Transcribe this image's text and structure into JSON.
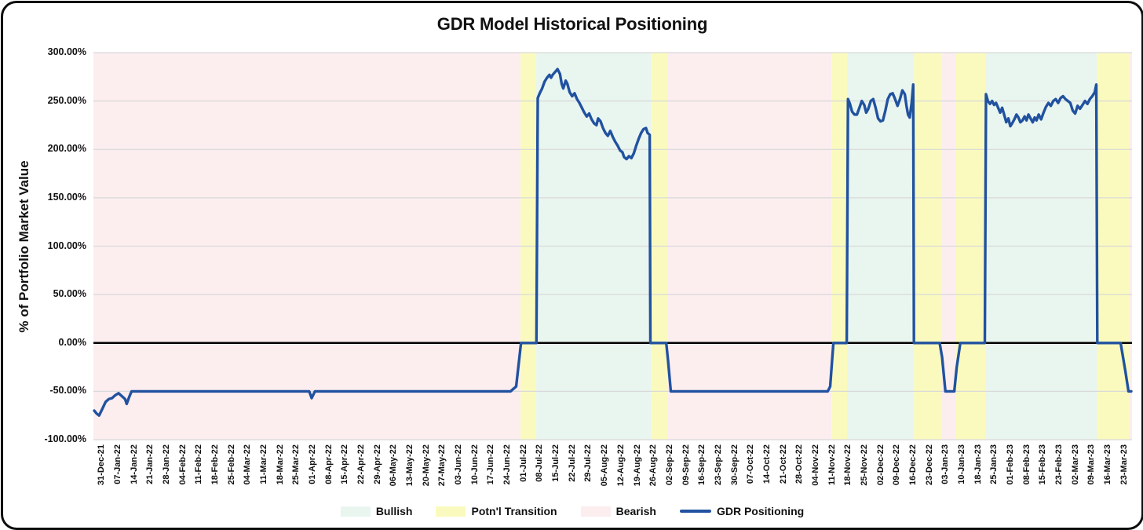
{
  "page": {
    "title": "GDR Model Historical Positioning"
  },
  "chart_data": {
    "type": "line",
    "title": "GDR Model Historical Positioning",
    "xlabel": "",
    "ylabel": "% of Portfolio Market Value",
    "ylim": [
      -100,
      300
    ],
    "grid": "horizontal",
    "legend_position": "bottom-center",
    "colors": {
      "bullish": "#e9f5ef",
      "transition": "#fafabe",
      "bearish": "#fcedef",
      "line": "#2152a0",
      "gridline": "#d9d9d9",
      "zeroline": "#000000"
    },
    "y_ticks": [
      {
        "label": "300.00%",
        "value": 300
      },
      {
        "label": "250.00%",
        "value": 250
      },
      {
        "label": "200.00%",
        "value": 200
      },
      {
        "label": "150.00%",
        "value": 150
      },
      {
        "label": "100.00%",
        "value": 100
      },
      {
        "label": "50.00%",
        "value": 50
      },
      {
        "label": "0.00%",
        "value": 0
      },
      {
        "label": "-50.00%",
        "value": -50
      },
      {
        "label": "-100.00%",
        "value": -100
      }
    ],
    "x_count": 64,
    "x_labels": [
      "31-Dec-21",
      "07-Jan-22",
      "14-Jan-22",
      "21-Jan-22",
      "28-Jan-22",
      "04-Feb-22",
      "11-Feb-22",
      "18-Feb-22",
      "25-Feb-22",
      "04-Mar-22",
      "11-Mar-22",
      "18-Mar-22",
      "25-Mar-22",
      "01-Apr-22",
      "08-Apr-22",
      "15-Apr-22",
      "22-Apr-22",
      "29-Apr-22",
      "06-May-22",
      "13-May-22",
      "20-May-22",
      "27-May-22",
      "03-Jun-22",
      "10-Jun-22",
      "17-Jun-22",
      "24-Jun-22",
      "01-Jul-22",
      "08-Jul-22",
      "15-Jul-22",
      "22-Jul-22",
      "29-Jul-22",
      "05-Aug-22",
      "12-Aug-22",
      "19-Aug-22",
      "26-Aug-22",
      "02-Sep-22",
      "09-Sep-22",
      "16-Sep-22",
      "23-Sep-22",
      "30-Sep-22",
      "07-Oct-22",
      "14-Oct-22",
      "21-Oct-22",
      "28-Oct-22",
      "04-Nov-22",
      "11-Nov-22",
      "18-Nov-22",
      "25-Nov-22",
      "02-Dec-22",
      "09-Dec-22",
      "16-Dec-22",
      "23-Dec-22",
      "03-Jan-23",
      "10-Jan-23",
      "18-Jan-23",
      "25-Jan-23",
      "01-Feb-23",
      "08-Feb-23",
      "15-Feb-23",
      "23-Feb-23",
      "02-Mar-23",
      "09-Mar-23",
      "16-Mar-23",
      "23-Mar-23"
    ],
    "regions": [
      {
        "label": "Bearish",
        "color": "bearish",
        "start": 0,
        "end": 26.32,
        "from": "31-Dec-21",
        "to": "01-Jul-22"
      },
      {
        "label": "Potn'l Transition",
        "color": "transition",
        "start": 26.32,
        "end": 27.29,
        "from": "01-Jul-22",
        "to": "08-Jul-22"
      },
      {
        "label": "Bullish",
        "color": "bullish",
        "start": 27.29,
        "end": 34.35,
        "from": "08-Jul-22",
        "to": "26-Aug-22"
      },
      {
        "label": "Potn'l Transition",
        "color": "transition",
        "start": 34.35,
        "end": 35.41,
        "from": "26-Aug-22",
        "to": "02-Sep-22"
      },
      {
        "label": "Bearish",
        "color": "bearish",
        "start": 35.41,
        "end": 45.48,
        "from": "02-Sep-22",
        "to": "11-Nov-22"
      },
      {
        "label": "Potn'l Transition",
        "color": "transition",
        "start": 45.48,
        "end": 46.44,
        "from": "11-Nov-22",
        "to": "18-Nov-22"
      },
      {
        "label": "Bullish",
        "color": "bullish",
        "start": 46.44,
        "end": 50.56,
        "from": "18-Nov-22",
        "to": "16-Dec-22"
      },
      {
        "label": "Potn'l Transition",
        "color": "transition",
        "start": 50.56,
        "end": 52.3,
        "from": "16-Dec-22",
        "to": "03-Jan-23"
      },
      {
        "label": "Bearish",
        "color": "bearish",
        "start": 52.3,
        "end": 53.12,
        "from": "03-Jan-23",
        "to": "10-Jan-23"
      },
      {
        "label": "Potn'l Transition",
        "color": "transition",
        "start": 53.12,
        "end": 54.96,
        "from": "10-Jan-23",
        "to": "18-Jan-23"
      },
      {
        "label": "Bullish",
        "color": "bullish",
        "start": 54.96,
        "end": 61.83,
        "from": "18-Jan-23",
        "to": "09-Mar-23"
      },
      {
        "label": "Potn'l Transition",
        "color": "transition",
        "start": 61.83,
        "end": 63.81,
        "from": "09-Mar-23",
        "to": "23-Mar-23"
      },
      {
        "label": "Bearish",
        "color": "bearish",
        "start": 63.81,
        "end": 64,
        "from": "23-Mar-23",
        "to": "23-Mar-23"
      }
    ],
    "series": [
      {
        "name": "GDR Positioning",
        "color": "line",
        "points": [
          [
            0.05,
            -70
          ],
          [
            0.2,
            -73
          ],
          [
            0.35,
            -75
          ],
          [
            0.55,
            -68
          ],
          [
            0.75,
            -61
          ],
          [
            0.95,
            -58
          ],
          [
            1.15,
            -57
          ],
          [
            1.35,
            -54
          ],
          [
            1.55,
            -52
          ],
          [
            1.75,
            -55
          ],
          [
            1.95,
            -58
          ],
          [
            2.05,
            -63
          ],
          [
            2.2,
            -56
          ],
          [
            2.35,
            -50
          ],
          [
            13.0,
            -50
          ],
          [
            13.3,
            -50
          ],
          [
            13.45,
            -57
          ],
          [
            13.65,
            -50
          ],
          [
            25.7,
            -50
          ],
          [
            26.05,
            -45
          ],
          [
            26.35,
            0
          ],
          [
            27.3,
            0
          ],
          [
            27.38,
            253
          ],
          [
            27.5,
            258
          ],
          [
            27.65,
            263
          ],
          [
            27.8,
            270
          ],
          [
            27.95,
            274
          ],
          [
            28.1,
            277
          ],
          [
            28.2,
            274
          ],
          [
            28.3,
            277
          ],
          [
            28.45,
            280
          ],
          [
            28.6,
            283
          ],
          [
            28.75,
            278
          ],
          [
            28.85,
            268
          ],
          [
            28.95,
            263
          ],
          [
            29.1,
            271
          ],
          [
            29.2,
            268
          ],
          [
            29.35,
            259
          ],
          [
            29.5,
            255
          ],
          [
            29.65,
            258
          ],
          [
            29.8,
            252
          ],
          [
            29.95,
            248
          ],
          [
            30.1,
            243
          ],
          [
            30.25,
            238
          ],
          [
            30.4,
            234
          ],
          [
            30.55,
            237
          ],
          [
            30.7,
            231
          ],
          [
            30.85,
            227
          ],
          [
            31.0,
            225
          ],
          [
            31.1,
            232
          ],
          [
            31.25,
            229
          ],
          [
            31.4,
            222
          ],
          [
            31.55,
            217
          ],
          [
            31.7,
            214
          ],
          [
            31.85,
            219
          ],
          [
            32.0,
            213
          ],
          [
            32.15,
            208
          ],
          [
            32.3,
            204
          ],
          [
            32.45,
            199
          ],
          [
            32.6,
            197
          ],
          [
            32.7,
            192
          ],
          [
            32.85,
            190
          ],
          [
            33.0,
            193
          ],
          [
            33.15,
            191
          ],
          [
            33.3,
            196
          ],
          [
            33.45,
            204
          ],
          [
            33.6,
            211
          ],
          [
            33.75,
            217
          ],
          [
            33.9,
            221
          ],
          [
            34.05,
            222
          ],
          [
            34.15,
            217
          ],
          [
            34.28,
            215
          ],
          [
            34.32,
            0
          ],
          [
            35.3,
            0
          ],
          [
            35.42,
            -20
          ],
          [
            35.58,
            -50
          ],
          [
            45.25,
            -50
          ],
          [
            45.4,
            -45
          ],
          [
            45.6,
            0
          ],
          [
            46.42,
            0
          ],
          [
            46.5,
            252
          ],
          [
            46.62,
            247
          ],
          [
            46.75,
            239
          ],
          [
            46.9,
            236
          ],
          [
            47.05,
            236
          ],
          [
            47.2,
            243
          ],
          [
            47.35,
            250
          ],
          [
            47.5,
            246
          ],
          [
            47.62,
            238
          ],
          [
            47.75,
            242
          ],
          [
            47.9,
            250
          ],
          [
            48.05,
            252
          ],
          [
            48.2,
            243
          ],
          [
            48.35,
            232
          ],
          [
            48.5,
            229
          ],
          [
            48.65,
            230
          ],
          [
            48.8,
            240
          ],
          [
            48.95,
            252
          ],
          [
            49.1,
            257
          ],
          [
            49.25,
            258
          ],
          [
            49.4,
            252
          ],
          [
            49.55,
            245
          ],
          [
            49.7,
            252
          ],
          [
            49.85,
            261
          ],
          [
            50.0,
            257
          ],
          [
            50.1,
            245
          ],
          [
            50.2,
            236
          ],
          [
            50.3,
            233
          ],
          [
            50.42,
            248
          ],
          [
            50.52,
            267
          ],
          [
            50.56,
            0
          ],
          [
            52.15,
            0
          ],
          [
            52.3,
            -15
          ],
          [
            52.5,
            -50
          ],
          [
            53.05,
            -50
          ],
          [
            53.2,
            -25
          ],
          [
            53.42,
            0
          ],
          [
            54.93,
            0
          ],
          [
            55.0,
            257
          ],
          [
            55.12,
            250
          ],
          [
            55.25,
            247
          ],
          [
            55.38,
            250
          ],
          [
            55.5,
            246
          ],
          [
            55.62,
            248
          ],
          [
            55.75,
            243
          ],
          [
            55.88,
            238
          ],
          [
            56.0,
            243
          ],
          [
            56.12,
            236
          ],
          [
            56.25,
            228
          ],
          [
            56.38,
            232
          ],
          [
            56.5,
            224
          ],
          [
            56.62,
            227
          ],
          [
            56.75,
            231
          ],
          [
            56.88,
            236
          ],
          [
            57.0,
            233
          ],
          [
            57.12,
            228
          ],
          [
            57.25,
            230
          ],
          [
            57.38,
            234
          ],
          [
            57.5,
            230
          ],
          [
            57.62,
            236
          ],
          [
            57.75,
            232
          ],
          [
            57.88,
            228
          ],
          [
            58.0,
            233
          ],
          [
            58.12,
            230
          ],
          [
            58.25,
            236
          ],
          [
            58.4,
            231
          ],
          [
            58.55,
            238
          ],
          [
            58.7,
            244
          ],
          [
            58.85,
            248
          ],
          [
            59.0,
            245
          ],
          [
            59.15,
            250
          ],
          [
            59.3,
            252
          ],
          [
            59.45,
            248
          ],
          [
            59.6,
            253
          ],
          [
            59.75,
            255
          ],
          [
            59.9,
            252
          ],
          [
            60.05,
            250
          ],
          [
            60.2,
            248
          ],
          [
            60.35,
            240
          ],
          [
            60.5,
            237
          ],
          [
            60.65,
            245
          ],
          [
            60.8,
            242
          ],
          [
            60.95,
            246
          ],
          [
            61.1,
            250
          ],
          [
            61.25,
            247
          ],
          [
            61.4,
            252
          ],
          [
            61.55,
            255
          ],
          [
            61.7,
            259
          ],
          [
            61.8,
            267
          ],
          [
            61.86,
            0
          ],
          [
            63.3,
            0
          ],
          [
            63.6,
            -30
          ],
          [
            63.78,
            -50
          ],
          [
            63.95,
            -50
          ]
        ]
      }
    ],
    "legend": {
      "items": [
        {
          "label": "Bullish",
          "swatch": "fill",
          "color": "bullish"
        },
        {
          "label": "Potn'l Transition",
          "swatch": "fill",
          "color": "transition"
        },
        {
          "label": "Bearish",
          "swatch": "fill",
          "color": "bearish"
        },
        {
          "label": "GDR Positioning",
          "swatch": "line",
          "color": "line"
        }
      ]
    }
  }
}
